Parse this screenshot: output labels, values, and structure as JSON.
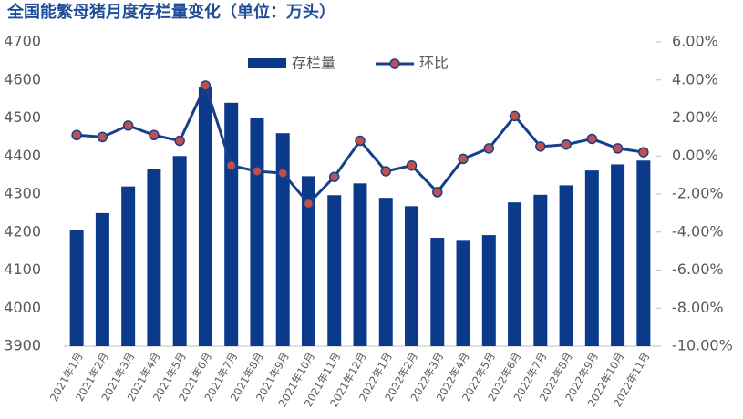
{
  "chart_data": {
    "type": "bar-line",
    "title": "全国能繁母猪月度存栏量变化（单位：万头）",
    "categories": [
      "2021年1月",
      "2021年2月",
      "2021年3月",
      "2021年4月",
      "2021年5月",
      "2021年6月",
      "2021年7月",
      "2021年8月",
      "2021年9月",
      "2021年10月",
      "2021年11月",
      "2021年12月",
      "2022年1月",
      "2022年2月",
      "2022年3月",
      "2022年4月",
      "2022年5月",
      "2022年6月",
      "2022年7月",
      "2022年8月",
      "2022年9月",
      "2022年10月",
      "2022年11月"
    ],
    "series": [
      {
        "name": "存栏量",
        "type": "bar",
        "color": "#0b3a8a",
        "values": [
          4205,
          4250,
          4320,
          4365,
          4400,
          4580,
          4540,
          4500,
          4460,
          4347,
          4297,
          4328,
          4290,
          4268,
          4185,
          4177,
          4192,
          4278,
          4298,
          4323,
          4362,
          4378,
          4388
        ]
      },
      {
        "name": "环比",
        "type": "line",
        "axis": "y2",
        "color": "#173f8c",
        "marker_color": "#c0504d",
        "values": [
          1.1,
          1.0,
          1.6,
          1.1,
          0.8,
          3.7,
          -0.5,
          -0.8,
          -0.9,
          -2.5,
          -1.1,
          0.8,
          -0.8,
          -0.5,
          -1.9,
          -0.15,
          0.4,
          2.1,
          0.5,
          0.6,
          0.9,
          0.4,
          0.2
        ]
      }
    ],
    "ylim": [
      3900,
      4700
    ],
    "yticks": [
      3900,
      4000,
      4100,
      4200,
      4300,
      4400,
      4500,
      4600,
      4700
    ],
    "y2lim": [
      -10,
      6
    ],
    "y2ticks": [
      {
        "value": -10,
        "label": "-10.00%"
      },
      {
        "value": -8,
        "label": "-8.00%"
      },
      {
        "value": -6,
        "label": "-6.00%"
      },
      {
        "value": -4,
        "label": "-4.00%"
      },
      {
        "value": -2,
        "label": "-2.00%"
      },
      {
        "value": 0,
        "label": "0.00%"
      },
      {
        "value": 2,
        "label": "2.00%"
      },
      {
        "value": 4,
        "label": "4.00%"
      },
      {
        "value": 6,
        "label": "6.00%"
      }
    ],
    "legend": "top"
  }
}
